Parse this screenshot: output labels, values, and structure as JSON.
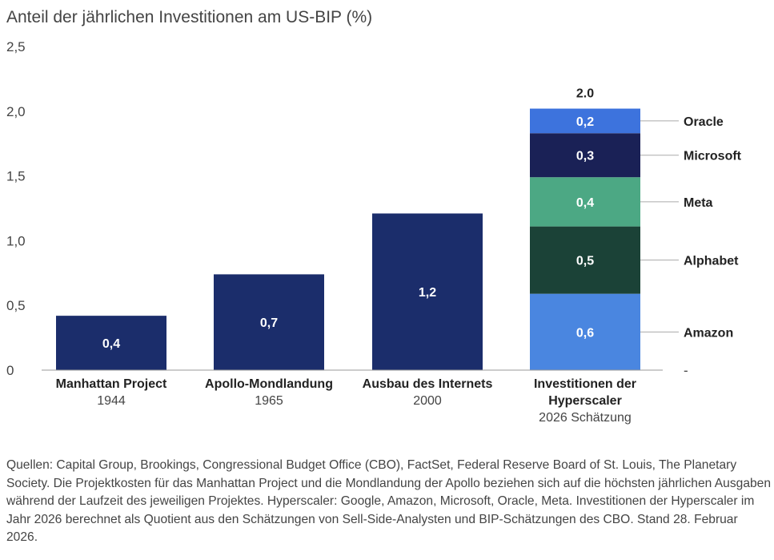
{
  "chart_data": {
    "type": "bar",
    "title": "Anteil der jährlichen Investitionen am US-BIP (%)",
    "ylim": [
      0,
      2.5
    ],
    "yticks": [
      "0",
      "0,5",
      "1,0",
      "1,5",
      "2,0",
      "2,5"
    ],
    "ytick_values": [
      0,
      0.5,
      1.0,
      1.5,
      2.0,
      2.5
    ],
    "categories": [
      {
        "name": "Manhattan Project",
        "sub": "1944"
      },
      {
        "name": "Apollo-Mondlandung",
        "sub": "1965"
      },
      {
        "name": "Ausbau des Internets",
        "sub": "2000"
      },
      {
        "name": "Investitionen der Hyperscaler",
        "name_lines": [
          "Investitionen der",
          "Hyperscaler"
        ],
        "sub": "2026 Schätzung"
      }
    ],
    "simple_bars": [
      {
        "value": 0.42,
        "label": "0,4",
        "color": "#1b2d6b"
      },
      {
        "value": 0.74,
        "label": "0,7",
        "color": "#1b2d6b"
      },
      {
        "value": 1.21,
        "label": "1,2",
        "color": "#1b2d6b"
      }
    ],
    "stacked_bar": {
      "total_label": "2.0",
      "segments": [
        {
          "name": "Amazon",
          "value": 0.59,
          "label": "0,6",
          "color": "#4a86e0"
        },
        {
          "name": "Alphabet",
          "value": 0.52,
          "label": "0,5",
          "color": "#1b4237"
        },
        {
          "name": "Meta",
          "value": 0.38,
          "label": "0,4",
          "color": "#4ca884"
        },
        {
          "name": "Microsoft",
          "value": 0.34,
          "label": "0,3",
          "color": "#1a2156"
        },
        {
          "name": "Oracle",
          "value": 0.19,
          "label": "0,2",
          "color": "#3d73dd"
        }
      ]
    },
    "grid": false,
    "legend": "right-of-stacked-bar"
  },
  "footnote": "Quellen: Capital Group, Brookings, Congressional Budget Office (CBO), FactSet, Federal Reserve Board of St. Louis, The Planetary Society. Die Projektkosten für das Manhattan Project und die Mondlandung der Apollo beziehen sich auf die höchsten jährlichen Ausgaben während der Laufzeit des jeweiligen Projektes. Hyperscaler: Google, Amazon, Microsoft, Oracle, Meta. Investitionen der Hyperscaler im Jahr 2026 berechnet als Quotient aus den Schätzungen von Sell-Side-Analysten und BIP-Schätzungen des CBO. Stand 28. Februar 2026.",
  "axis_end_mark": "-"
}
